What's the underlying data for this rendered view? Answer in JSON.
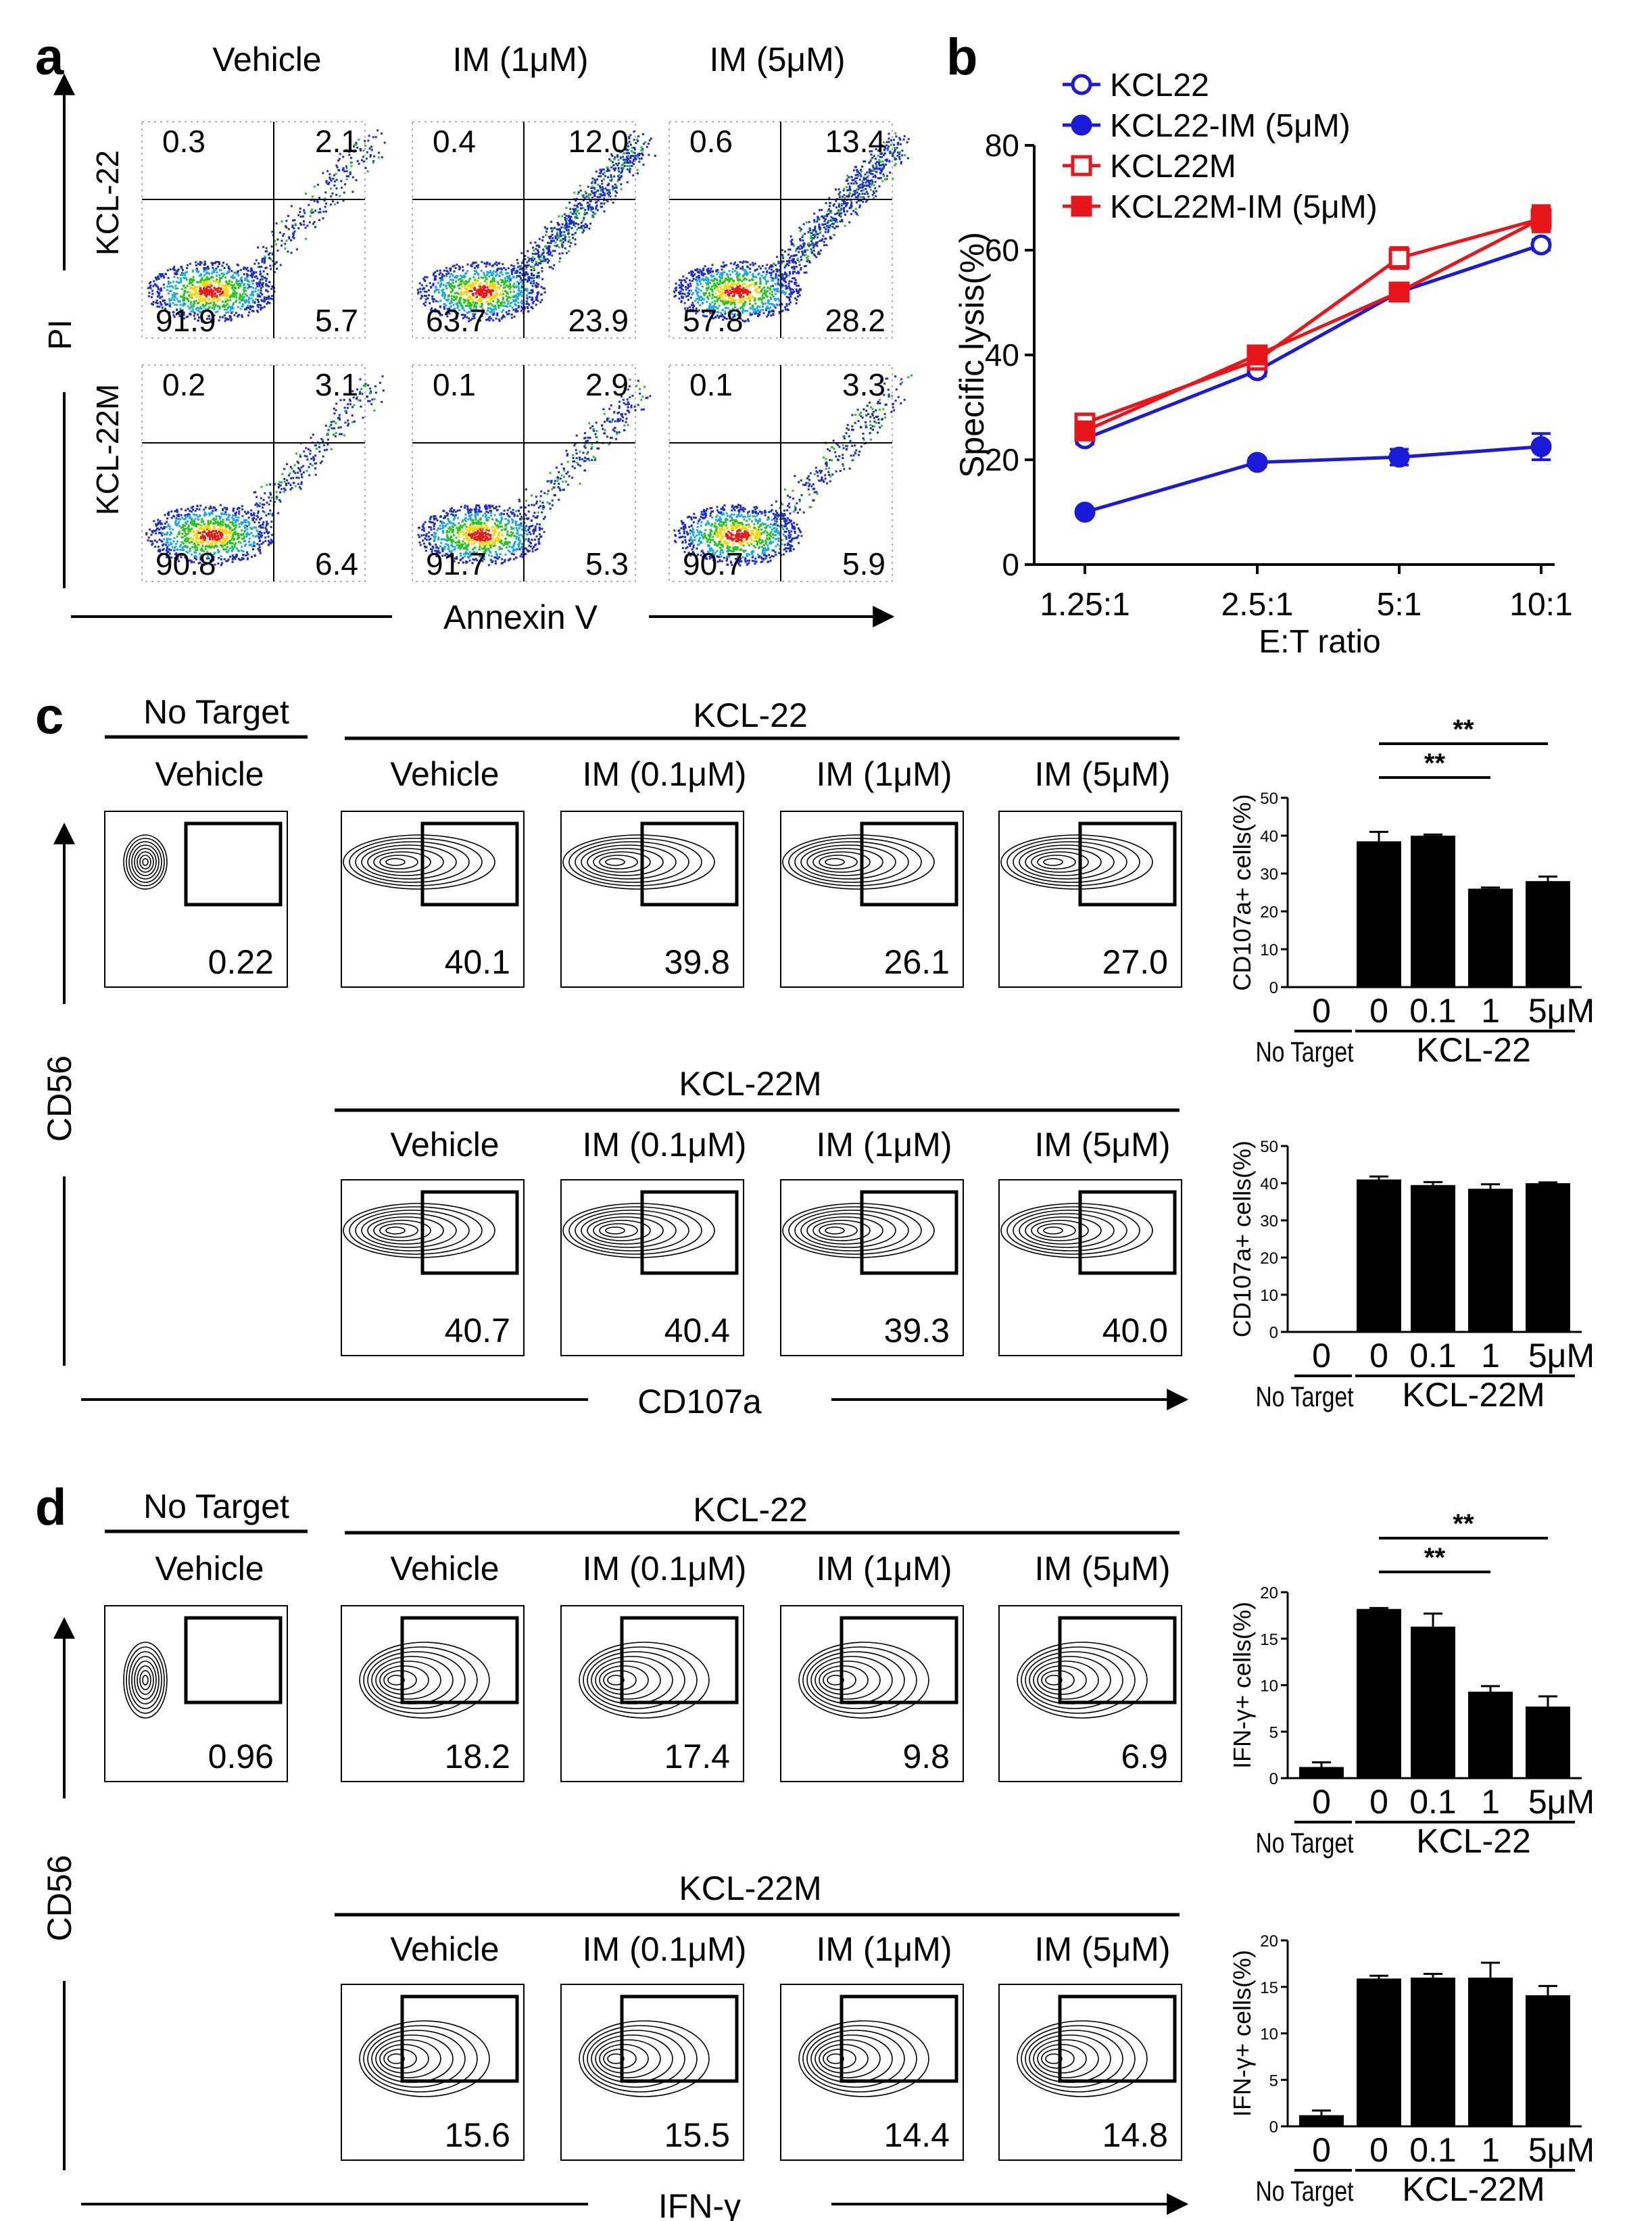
{
  "panel_labels": {
    "a": "a",
    "b": "b",
    "c": "c",
    "d": "d"
  },
  "panel_a": {
    "col_titles": [
      "Vehicle",
      "IM (1μM)",
      "IM (5μM)"
    ],
    "row_labels": [
      "KCL-22",
      "KCL-22M"
    ],
    "x_label": "Annexin V",
    "y_label": "PI",
    "quadrants": [
      [
        [
          "0.3",
          "2.1",
          "91.9",
          "5.7"
        ],
        [
          "0.4",
          "12.0",
          "63.7",
          "23.9"
        ],
        [
          "0.6",
          "13.4",
          "57.8",
          "28.2"
        ]
      ],
      [
        [
          "0.2",
          "3.1",
          "90.8",
          "6.4"
        ],
        [
          "0.1",
          "2.9",
          "91.7",
          "5.3"
        ],
        [
          "0.1",
          "3.3",
          "90.7",
          "5.9"
        ]
      ]
    ]
  },
  "panel_c": {
    "no_target_label": "No Target",
    "top_group": "KCL-22",
    "bottom_group": "KCL-22M",
    "conditions": [
      "Vehicle",
      "IM (0.1μM)",
      "IM (1μM)",
      "IM (5μM)"
    ],
    "no_target_condition": "Vehicle",
    "y_label": "CD56",
    "x_label": "CD107a",
    "top_values": [
      "0.22",
      "40.1",
      "39.8",
      "26.1",
      "27.0"
    ],
    "bottom_values": [
      "40.7",
      "40.4",
      "39.3",
      "40.0"
    ]
  },
  "panel_d": {
    "no_target_label": "No Target",
    "top_group": "KCL-22",
    "bottom_group": "KCL-22M",
    "conditions": [
      "Vehicle",
      "IM (0.1μM)",
      "IM (1μM)",
      "IM (5μM)"
    ],
    "no_target_condition": "Vehicle",
    "y_label": "CD56",
    "x_label": "IFN-γ",
    "top_values": [
      "0.96",
      "18.2",
      "17.4",
      "9.8",
      "6.9"
    ],
    "bottom_values": [
      "15.6",
      "15.5",
      "14.4",
      "14.8"
    ]
  },
  "chart_data": [
    {
      "type": "line",
      "panel": "b",
      "xlabel": "E:T ratio",
      "ylabel": "Specific lysis(%)",
      "categories": [
        "1.25:1",
        "2.5:1",
        "5:1",
        "10:1"
      ],
      "ylim": [
        0,
        80
      ],
      "yticks": [
        0,
        20,
        40,
        60,
        80
      ],
      "series": [
        {
          "name": "KCL22",
          "values": [
            24,
            37,
            52,
            61
          ],
          "errors": [
            1,
            1,
            1.5,
            1
          ],
          "color": "#1a1adb",
          "marker": "open-circle"
        },
        {
          "name": "KCL22-IM (5μM)",
          "values": [
            10,
            19.5,
            20.5,
            22.5
          ],
          "errors": [
            0.5,
            0.8,
            1.5,
            2.5
          ],
          "color": "#1a1adb",
          "marker": "filled-circle"
        },
        {
          "name": "KCL22M",
          "values": [
            27,
            39,
            58.5,
            66
          ],
          "errors": [
            1,
            1,
            2,
            2
          ],
          "color": "#e8161b",
          "marker": "open-square"
        },
        {
          "name": "KCL22M-IM (5μM)",
          "values": [
            25.5,
            40,
            52,
            66
          ],
          "errors": [
            1,
            1,
            1,
            2.5
          ],
          "color": "#e8161b",
          "marker": "filled-square"
        }
      ]
    },
    {
      "type": "bar",
      "panel": "c-top",
      "ylabel": "CD107a+ cells(%)",
      "categories": [
        "0",
        "0",
        "0.1",
        "1",
        "5μM"
      ],
      "values": [
        0,
        38.5,
        40,
        26,
        28
      ],
      "errors": [
        0,
        2.5,
        0.3,
        0.3,
        1.2
      ],
      "ylim": [
        0,
        50
      ],
      "yticks": [
        0,
        10,
        20,
        30,
        40,
        50
      ],
      "group_labels": [
        "No Target",
        "KCL-22"
      ],
      "significance": [
        "**",
        "**"
      ]
    },
    {
      "type": "bar",
      "panel": "c-bottom",
      "ylabel": "CD107a+ cells(%)",
      "categories": [
        "0",
        "0",
        "0.1",
        "1",
        "5μM"
      ],
      "values": [
        0,
        41,
        39.5,
        38.5,
        40
      ],
      "errors": [
        0,
        0.8,
        0.8,
        1.2,
        0.2
      ],
      "ylim": [
        0,
        50
      ],
      "yticks": [
        0,
        10,
        20,
        30,
        40,
        50
      ],
      "group_labels": [
        "No Target",
        "KCL-22M"
      ]
    },
    {
      "type": "bar",
      "panel": "d-top",
      "ylabel": "IFN-γ+ cells(%)",
      "categories": [
        "0",
        "0",
        "0.1",
        "1",
        "5μM"
      ],
      "values": [
        1.2,
        18.2,
        16.3,
        9.3,
        7.7
      ],
      "errors": [
        0.5,
        0.1,
        1.4,
        0.6,
        1.1
      ],
      "ylim": [
        0,
        20
      ],
      "yticks": [
        0,
        5,
        10,
        15,
        20
      ],
      "group_labels": [
        "No Target",
        "KCL-22"
      ],
      "significance": [
        "**",
        "**"
      ]
    },
    {
      "type": "bar",
      "panel": "d-bottom",
      "ylabel": "IFN-γ+ cells(%)",
      "categories": [
        "0",
        "0",
        "0.1",
        "1",
        "5μM"
      ],
      "values": [
        1.2,
        15.9,
        16,
        16,
        14.1
      ],
      "errors": [
        0.5,
        0.3,
        0.4,
        1.6,
        1
      ],
      "ylim": [
        0,
        20
      ],
      "yticks": [
        0,
        5,
        10,
        15,
        20
      ],
      "group_labels": [
        "No Target",
        "KCL-22M"
      ]
    }
  ]
}
